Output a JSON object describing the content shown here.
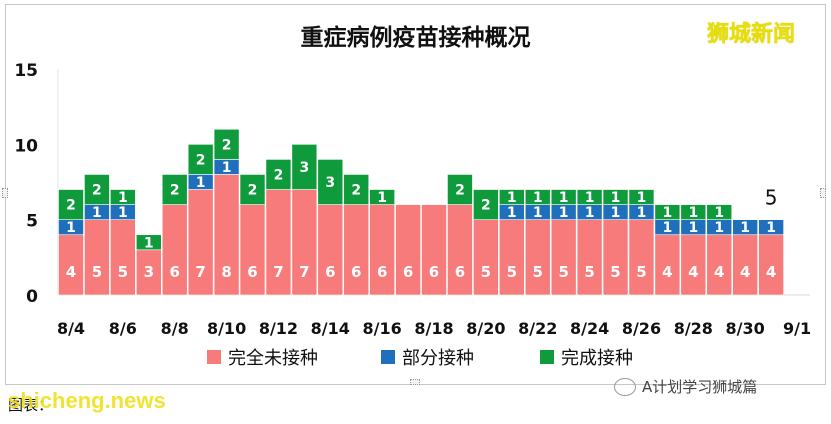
{
  "title": "重症病例疫苗接种概况",
  "brand": "狮城新闻",
  "footer": {
    "source_prefix": "图表：",
    "watermark": "shicheng.news",
    "account": "A计划学习狮城篇"
  },
  "colors": {
    "unvaccinated": "#f77b7b",
    "partial": "#1f6fbd",
    "full": "#0f9a3c"
  },
  "chart_data": {
    "type": "bar",
    "stacked": true,
    "title": "重症病例疫苗接种概况",
    "categories": [
      "8/4",
      "8/5",
      "8/6",
      "8/7",
      "8/8",
      "8/9",
      "8/10",
      "8/11",
      "8/12",
      "8/13",
      "8/14",
      "8/15",
      "8/16",
      "8/17",
      "8/18",
      "8/19",
      "8/20",
      "8/21",
      "8/22",
      "8/23",
      "8/24",
      "8/25",
      "8/26",
      "8/27",
      "8/28",
      "8/29",
      "8/30",
      "8/31"
    ],
    "x_tick_labels": [
      "8/4",
      "8/6",
      "8/8",
      "8/10",
      "8/12",
      "8/14",
      "8/16",
      "8/18",
      "8/20",
      "8/22",
      "8/24",
      "8/26",
      "8/28",
      "8/30",
      "9/1"
    ],
    "series": [
      {
        "name": "完全未接种",
        "values": [
          4,
          5,
          5,
          3,
          6,
          7,
          8,
          6,
          7,
          7,
          6,
          6,
          6,
          6,
          6,
          6,
          5,
          5,
          5,
          5,
          5,
          5,
          5,
          4,
          4,
          4,
          4,
          4
        ]
      },
      {
        "name": "部分接种",
        "values": [
          1,
          1,
          1,
          0,
          0,
          1,
          1,
          0,
          0,
          0,
          0,
          0,
          0,
          0,
          0,
          0,
          0,
          1,
          1,
          1,
          1,
          1,
          1,
          1,
          1,
          1,
          1,
          1
        ]
      },
      {
        "name": "完成接种",
        "values": [
          2,
          2,
          1,
          1,
          2,
          2,
          2,
          2,
          2,
          3,
          3,
          2,
          1,
          0,
          0,
          2,
          2,
          1,
          1,
          1,
          1,
          1,
          1,
          1,
          1,
          1,
          0,
          0
        ]
      }
    ],
    "ylim": [
      0,
      15
    ],
    "y_ticks": [
      0,
      5,
      10,
      15
    ],
    "annotation": {
      "category": "8/31",
      "text": "5"
    },
    "legend_position": "bottom",
    "grid": false
  }
}
